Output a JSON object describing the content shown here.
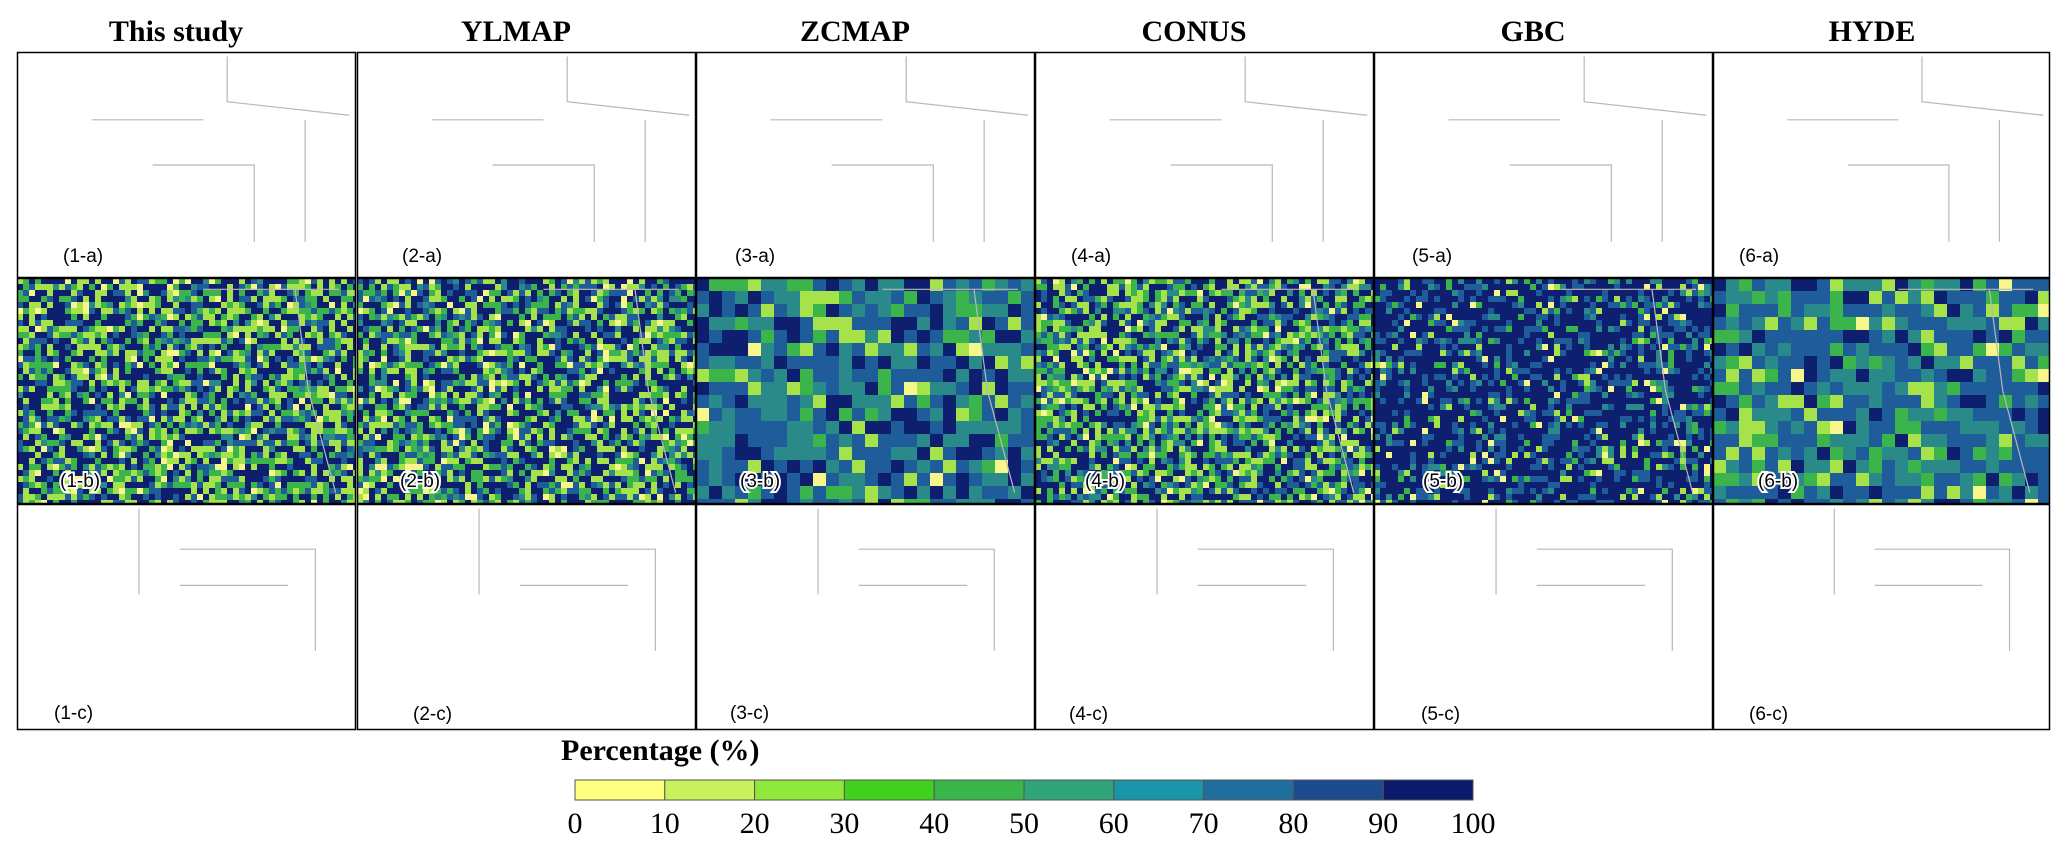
{
  "columns": [
    {
      "title": "This study"
    },
    {
      "title": "YLMAP"
    },
    {
      "title": "ZCMAP"
    },
    {
      "title": "CONUS"
    },
    {
      "title": "GBC"
    },
    {
      "title": "HYDE"
    }
  ],
  "rows": [
    "a",
    "b",
    "c"
  ],
  "panels": [
    [
      "(1-a)",
      "(1-b)",
      "(1-c)"
    ],
    [
      "(2-a)",
      "(2-b)",
      "(2-c)"
    ],
    [
      "(3-a)",
      "(3-b)",
      "(3-c)"
    ],
    [
      "(4-a)",
      "(4-b)",
      "(4-c)"
    ],
    [
      "(5-a)",
      "(5-b)",
      "(5-c)"
    ],
    [
      "(6-a)",
      "(6-b)",
      "(6-c)"
    ]
  ],
  "legend": {
    "title": "Percentage (%)",
    "ticks": [
      "0",
      "10",
      "20",
      "30",
      "40",
      "50",
      "60",
      "70",
      "80",
      "90",
      "100"
    ],
    "colors": [
      "#ffff80",
      "#c9f25a",
      "#8fe83a",
      "#3fd11c",
      "#3ab54a",
      "#2ea57a",
      "#1a95a8",
      "#1f6e9e",
      "#1c4a8f",
      "#0c1a6b"
    ]
  },
  "map_palette": {
    "background": "#ffffff",
    "yellow": "#f6f68a",
    "lime": "#a6e24a",
    "green": "#3cb44c",
    "teal": "#2a8a8a",
    "blue": "#1f5c9a",
    "navy": "#0d1f6e",
    "state_lines": "#b8b8b8",
    "border": "#000000"
  }
}
